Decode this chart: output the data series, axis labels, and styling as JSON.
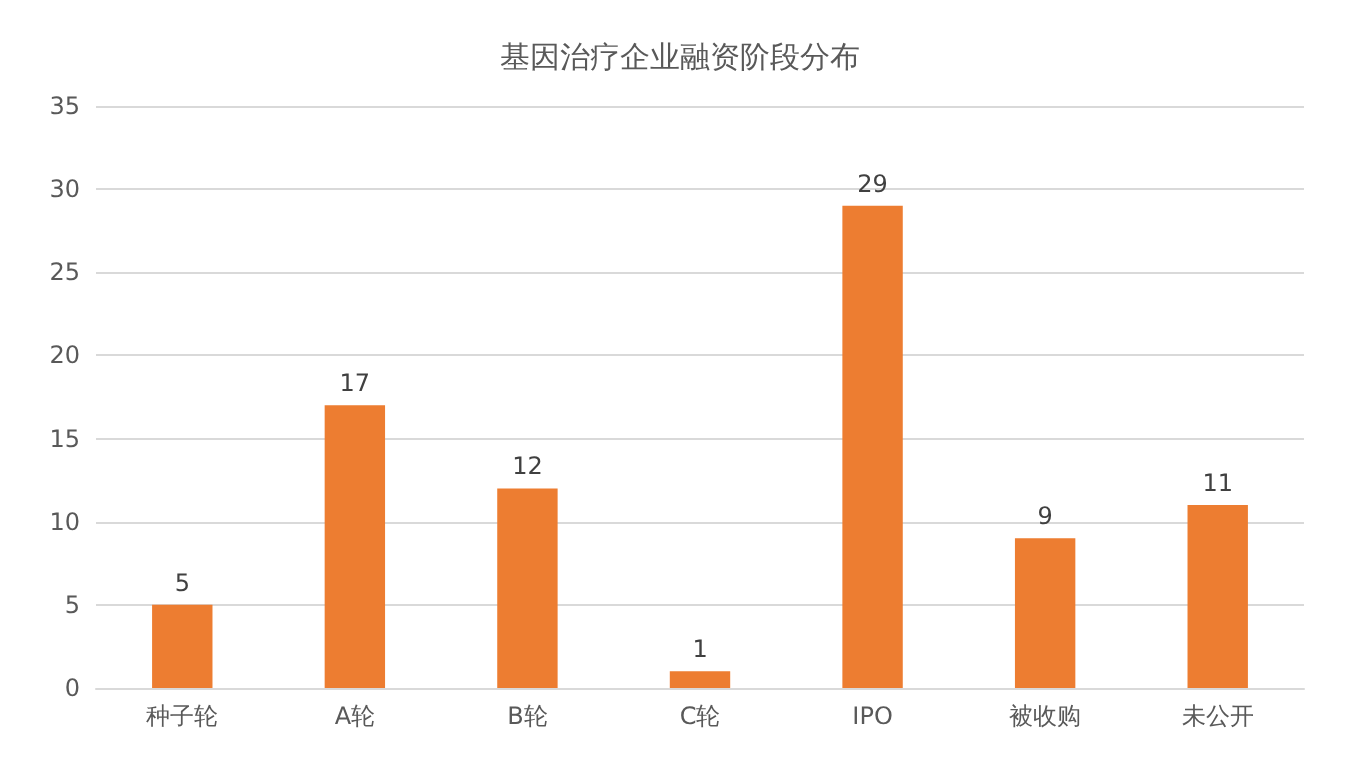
{
  "chart_data": {
    "type": "bar",
    "title": "基因治疗企业融资阶段分布",
    "categories": [
      "种子轮",
      "A轮",
      "B轮",
      "C轮",
      "IPO",
      "被收购",
      "未公开"
    ],
    "values": [
      5,
      17,
      12,
      1,
      29,
      9,
      11
    ],
    "color": "#ed7d31",
    "ylim": [
      0,
      35
    ],
    "yticks": [
      0,
      5,
      10,
      15,
      20,
      25,
      30,
      35
    ],
    "grid": "y",
    "data_labels": true
  }
}
